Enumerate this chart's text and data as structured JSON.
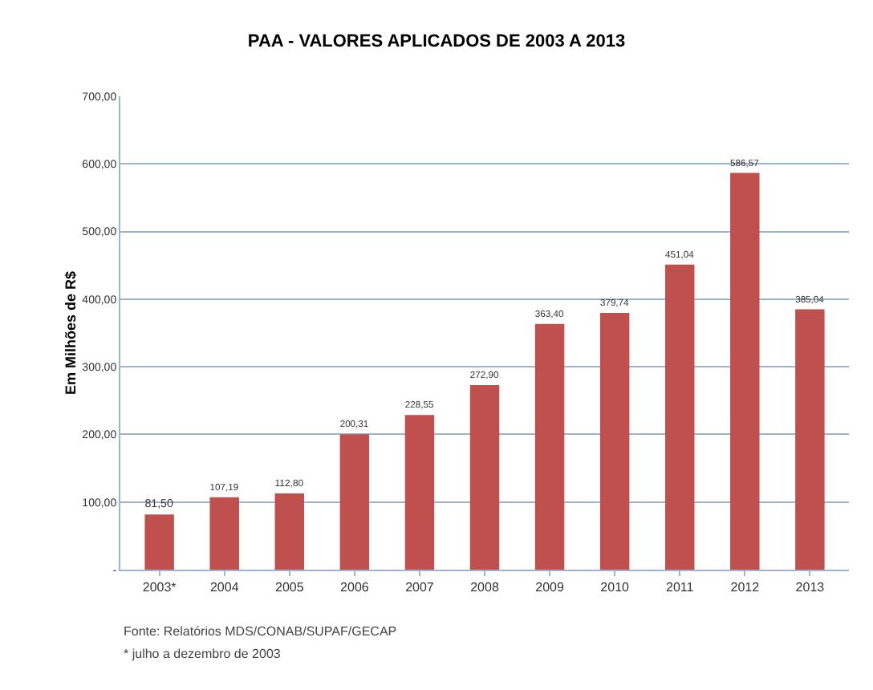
{
  "chart_data": {
    "type": "bar",
    "title": "PAA - VALORES APLICADOS DE 2003 A 2013",
    "ylabel": "Em Milhões de R$",
    "categories": [
      "2003*",
      "2004",
      "2005",
      "2006",
      "2007",
      "2008",
      "2009",
      "2010",
      "2011",
      "2012",
      "2013"
    ],
    "values": [
      81.5,
      107.19,
      112.8,
      200.31,
      228.55,
      272.9,
      363.4,
      379.74,
      451.04,
      586.57,
      385.04
    ],
    "value_labels": [
      "81,50",
      "107,19",
      "112,80",
      "200,31",
      "228,55",
      "272,90",
      "363,40",
      "379,74",
      "451,04",
      "586,57",
      "385,04"
    ],
    "color": "#c0504d",
    "ylim": [
      0,
      700
    ],
    "yticks": [
      {
        "value": 0,
        "label": "-"
      },
      {
        "value": 100,
        "label": "100,00"
      },
      {
        "value": 200,
        "label": "200,00"
      },
      {
        "value": 300,
        "label": "300,00"
      },
      {
        "value": 400,
        "label": "400,00"
      },
      {
        "value": 500,
        "label": "500,00"
      },
      {
        "value": 600,
        "label": "600,00"
      },
      {
        "value": 700,
        "label": "700,00"
      }
    ],
    "grid": "y",
    "annotations": [
      "Fonte: Relatórios MDS/CONAB/SUPAF/GECAP",
      "* julho a dezembro de 2003"
    ]
  }
}
